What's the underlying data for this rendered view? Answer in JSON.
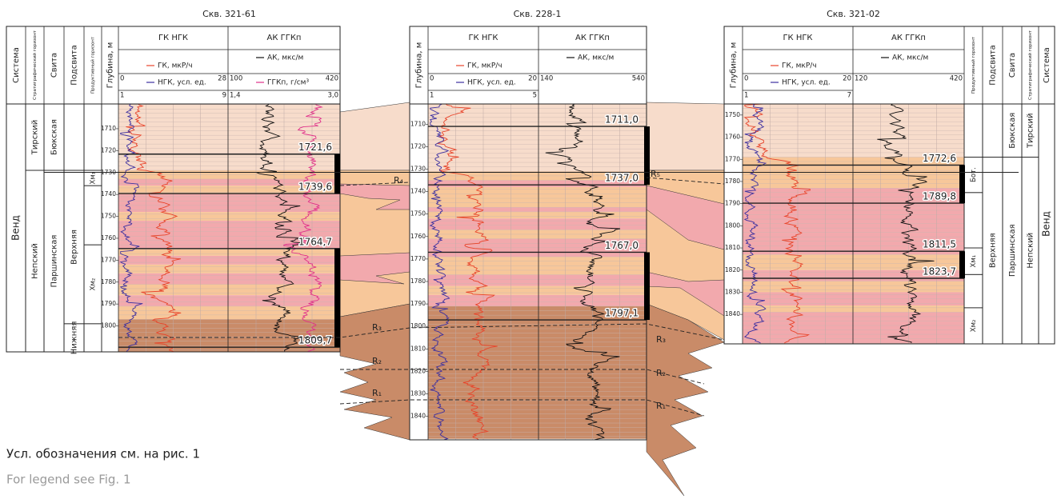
{
  "wells": [
    {
      "title": "Скв. 321-61",
      "headers": {
        "system": "Система",
        "horizon": "Стратиграфический горизонт",
        "suite": "Свита",
        "subsuite": "Подсвита",
        "productive": "Продуктивный горизонт",
        "depth": "Глубина, м",
        "gk_ngk": "ГК НГК",
        "ak_ggk": "АК ГГКп"
      },
      "curves": {
        "gk": "ГК, мкР/ч",
        "ngk": "НГК, усл. ед.",
        "ak": "АК, мкс/м",
        "ggk": "ГГКп, г/см³"
      },
      "scales": {
        "gk": [
          "0",
          "28"
        ],
        "ngk": [
          "1",
          "9"
        ],
        "ak": [
          "100",
          "420"
        ],
        "ggk": [
          "1,4",
          "3,0"
        ]
      },
      "depths": [
        1710,
        1720,
        1730,
        1740,
        1750,
        1760,
        1770,
        1780,
        1790,
        1800
      ],
      "markers": [
        {
          "label": "1721,6",
          "depth": 1721.6
        },
        {
          "label": "1739,6",
          "depth": 1739.6
        },
        {
          "label": "1764,7",
          "depth": 1764.7
        },
        {
          "label": "1809,7",
          "depth": 1809.7
        }
      ],
      "strat": {
        "system": "Венд",
        "horizons": [
          "Тирский",
          "Непский"
        ],
        "suites": [
          "Бюкская",
          "Паршинская"
        ],
        "subsuites": [
          "Верхняя",
          "Нижняя"
        ],
        "productive": [
          "Хм₁",
          "Хм₂"
        ]
      }
    },
    {
      "title": "Скв. 228-1",
      "headers": {
        "depth": "Глубина, м",
        "gk_ngk": "ГК НГК",
        "ak_ggk": "АК ГГКп"
      },
      "curves": {
        "gk": "ГК, мкР/ч",
        "ngk": "НГК, усл. ед.",
        "ak": "АК, мкс/м"
      },
      "scales": {
        "gk": [
          "0",
          "20"
        ],
        "ngk": [
          "1",
          "5"
        ],
        "ak": [
          "140",
          "540"
        ]
      },
      "depths": [
        1710,
        1720,
        1730,
        1740,
        1750,
        1760,
        1770,
        1780,
        1790,
        1800,
        1810,
        1820,
        1830,
        1840
      ],
      "markers": [
        {
          "label": "1711,0",
          "depth": 1711.0
        },
        {
          "label": "1737,0",
          "depth": 1737.0
        },
        {
          "label": "1767,0",
          "depth": 1767.0
        },
        {
          "label": "1797,1",
          "depth": 1797.1
        }
      ]
    },
    {
      "title": "Скв. 321-02",
      "headers": {
        "system": "Система",
        "horizon": "Стратиграфический горизонт",
        "suite": "Свита",
        "subsuite": "Подсвита",
        "productive": "Продуктивный горизонт",
        "depth": "Глубина, м",
        "gk_ngk": "ГК НГК",
        "ak_ggk": "АК ГГКп"
      },
      "curves": {
        "gk": "ГК, мкР/ч",
        "ngk": "НГК, усл. ед.",
        "ak": "АК, мкс/м"
      },
      "scales": {
        "gk": [
          "0",
          "20"
        ],
        "ngk": [
          "1",
          "7"
        ],
        "ak": [
          "120",
          "420"
        ]
      },
      "depths": [
        1750,
        1760,
        1770,
        1780,
        1790,
        1800,
        1810,
        1820,
        1830,
        1840
      ],
      "markers": [
        {
          "label": "1772,6",
          "depth": 1772.6
        },
        {
          "label": "1789,8",
          "depth": 1789.8
        },
        {
          "label": "1811,5",
          "depth": 1811.5
        },
        {
          "label": "1823,7",
          "depth": 1823.7
        }
      ],
      "strat": {
        "system": "Венд",
        "horizons": [
          "Тирский",
          "Непский"
        ],
        "suites": [
          "Бюкская",
          "Паршинская"
        ],
        "subsuites": [
          "Верхняя"
        ],
        "productive": [
          "Бот.",
          "Хм₁",
          "Хм₂"
        ]
      }
    }
  ],
  "horizons": [
    "R₁",
    "R₂",
    "R₃",
    "R₄",
    "R₅"
  ],
  "note": {
    "ru": "Усл. обозначения см. на рис. 1",
    "en": "For legend see Fig. 1"
  }
}
